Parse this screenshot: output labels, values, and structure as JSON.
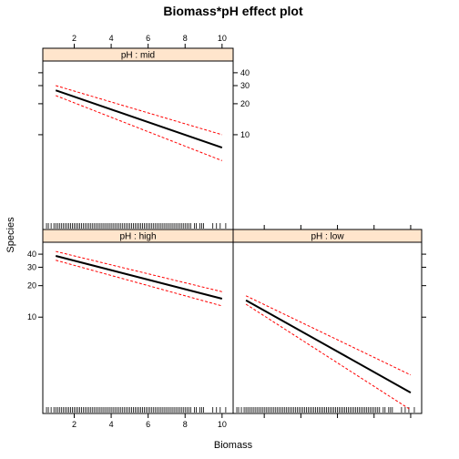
{
  "chart_data": {
    "type": "line",
    "title": "Biomass*pH effect plot",
    "xlabel": "Biomass",
    "ylabel": "Species",
    "xlim": [
      0.3,
      10.6
    ],
    "ylim": [
      1.2,
      52
    ],
    "y_scale": "log",
    "x_ticks": [
      2,
      4,
      6,
      8,
      10
    ],
    "y_ticks": [
      10,
      20,
      30,
      40
    ],
    "strip_color": "#ffe5cc",
    "fit_color": "#000000",
    "ci_color": "#ff0000",
    "panels": [
      {
        "label": "pH : mid",
        "fit": {
          "x": [
            1,
            10
          ],
          "y": [
            27,
            7.5
          ]
        },
        "lower": {
          "x": [
            1,
            10
          ],
          "y": [
            24,
            5.6
          ]
        },
        "upper": {
          "x": [
            1,
            10
          ],
          "y": [
            30,
            10
          ]
        }
      },
      {
        "label": "pH : high",
        "fit": {
          "x": [
            1,
            10
          ],
          "y": [
            38.5,
            15
          ]
        },
        "lower": {
          "x": [
            1,
            10
          ],
          "y": [
            35,
            12.8
          ]
        },
        "upper": {
          "x": [
            1,
            10
          ],
          "y": [
            42.5,
            17.5
          ]
        }
      },
      {
        "label": "pH : low",
        "fit": {
          "x": [
            1,
            10
          ],
          "y": [
            14.5,
            1.9
          ]
        },
        "lower": {
          "x": [
            1,
            10
          ],
          "y": [
            13.3,
            1.3
          ]
        },
        "upper": {
          "x": [
            1,
            10
          ],
          "y": [
            16,
            2.8
          ]
        }
      }
    ],
    "rug_x": [
      0.5,
      0.6,
      0.75,
      0.9,
      1.0,
      1.1,
      1.2,
      1.3,
      1.4,
      1.5,
      1.6,
      1.7,
      1.8,
      1.9,
      2.0,
      2.1,
      2.2,
      2.3,
      2.4,
      2.5,
      2.6,
      2.7,
      2.8,
      2.9,
      3.0,
      3.1,
      3.2,
      3.3,
      3.4,
      3.5,
      3.6,
      3.7,
      3.8,
      3.9,
      4.0,
      4.1,
      4.2,
      4.3,
      4.4,
      4.5,
      4.6,
      4.7,
      4.8,
      4.9,
      5.0,
      5.1,
      5.2,
      5.3,
      5.4,
      5.5,
      5.6,
      5.7,
      5.8,
      5.9,
      6.0,
      6.1,
      6.2,
      6.3,
      6.4,
      6.5,
      6.6,
      6.7,
      6.8,
      6.9,
      7.0,
      7.1,
      7.2,
      7.3,
      7.4,
      7.5,
      7.6,
      7.7,
      7.8,
      7.9,
      8.0,
      8.1,
      8.2,
      8.3,
      8.5,
      8.6,
      8.8,
      8.9,
      9.0,
      9.5,
      9.7,
      9.9,
      10.2
    ]
  }
}
